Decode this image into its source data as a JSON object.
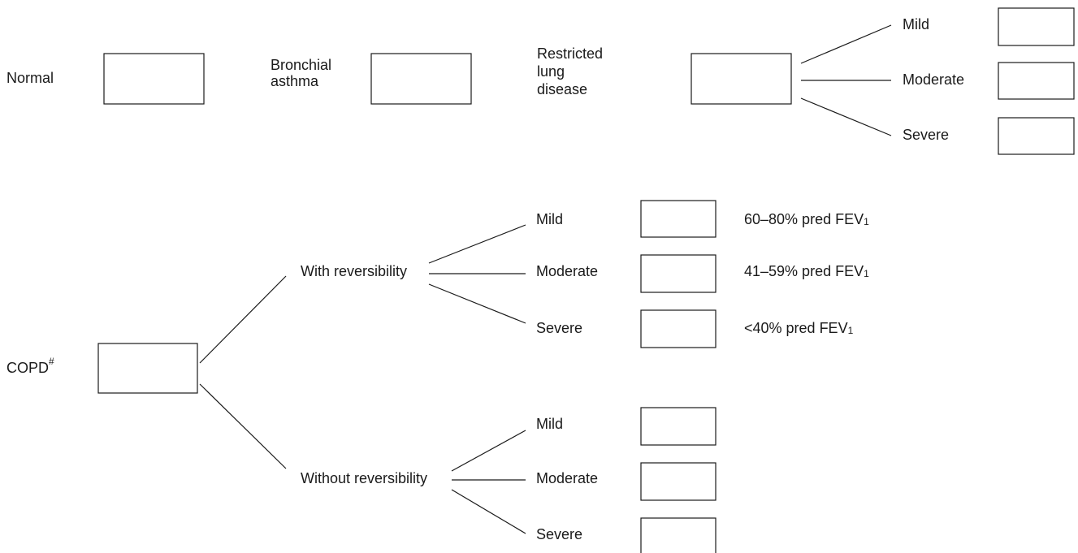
{
  "normal": {
    "label": "Normal"
  },
  "bronchial_asthma": {
    "label_lines": [
      "Bronchial",
      "asthma"
    ]
  },
  "restricted_lung_disease": {
    "label_lines": [
      "Restricted",
      "lung",
      "disease"
    ],
    "grades": [
      "Mild",
      "Moderate",
      "Severe"
    ]
  },
  "copd": {
    "label": "COPD",
    "superscript": "#",
    "branches": [
      {
        "label": "With reversibility",
        "grades": [
          "Mild",
          "Moderate",
          "Severe"
        ],
        "criteria": [
          {
            "text": "60–80% pred FEV",
            "sub": "1"
          },
          {
            "text": "41–59% pred FEV",
            "sub": "1"
          },
          {
            "text": "<40% pred FEV",
            "sub": "1"
          }
        ]
      },
      {
        "label": "Without reversibility",
        "grades": [
          "Mild",
          "Moderate",
          "Severe"
        ]
      }
    ]
  }
}
